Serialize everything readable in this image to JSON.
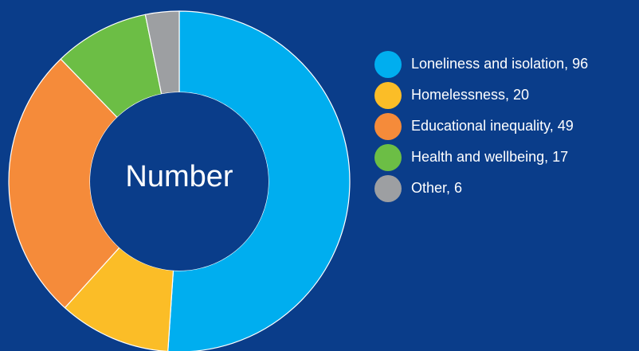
{
  "chart_data": {
    "type": "pie",
    "variant": "donut",
    "center_label": "Number",
    "slices": [
      {
        "label": "Loneliness and isolation, 96",
        "category": "Loneliness and isolation",
        "value": 96,
        "color": "#00aeef"
      },
      {
        "label": "Homelessness, 20",
        "category": "Homelessness",
        "value": 20,
        "color": "#fbbd27"
      },
      {
        "label": "Educational inequality, 49",
        "category": "Educational inequality",
        "value": 49,
        "color": "#f58b3a"
      },
      {
        "label": "Health and wellbeing, 17",
        "category": "Health and wellbeing",
        "value": 17,
        "color": "#6cbe45"
      },
      {
        "label": "Other, 6",
        "category": "Other",
        "value": 6,
        "color": "#9d9fa2"
      }
    ],
    "legend_position": "right",
    "background_color": "#0a3d8a"
  }
}
